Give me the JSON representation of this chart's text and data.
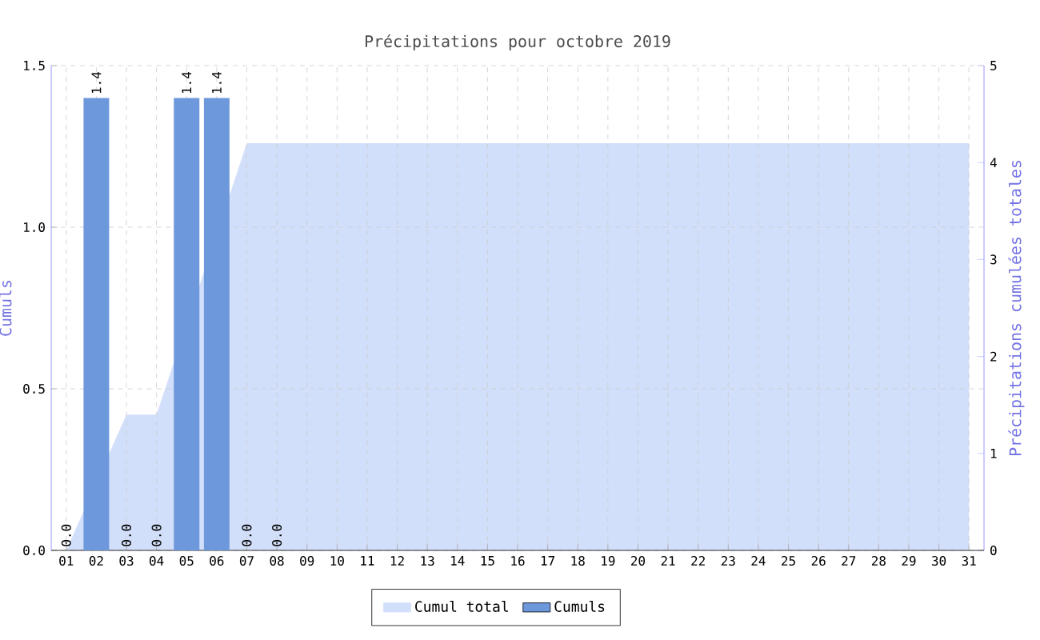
{
  "chart_data": {
    "type": "bar",
    "title": "Précipitations pour octobre 2019",
    "ylabel": "Cumuls",
    "y2label": "Précipitations cumulées totales",
    "categories": [
      "01",
      "02",
      "03",
      "04",
      "05",
      "06",
      "07",
      "08",
      "09",
      "10",
      "11",
      "12",
      "13",
      "14",
      "15",
      "16",
      "17",
      "18",
      "19",
      "20",
      "21",
      "22",
      "23",
      "24",
      "25",
      "26",
      "27",
      "28",
      "29",
      "30",
      "31"
    ],
    "ylim": [
      0,
      1.5
    ],
    "yticks": [
      {
        "value": 0,
        "label": "0.0"
      },
      {
        "value": 0.5,
        "label": "0.5"
      },
      {
        "value": 1,
        "label": "1.0"
      },
      {
        "value": 1.5,
        "label": "1.5"
      }
    ],
    "y2lim": [
      0,
      5
    ],
    "y2ticks": [
      0,
      1,
      2,
      3,
      4,
      5
    ],
    "grid": true,
    "legend": "bottom",
    "series": [
      {
        "name": "Cumul total",
        "type": "area",
        "axis": "y2",
        "color": "#d2dffa",
        "values": [
          0,
          null,
          1.4,
          1.4,
          null,
          null,
          4.2,
          4.2,
          4.2,
          4.2,
          4.2,
          4.2,
          4.2,
          4.2,
          4.2,
          4.2,
          4.2,
          4.2,
          4.2,
          4.2,
          4.2,
          4.2,
          4.2,
          4.2,
          4.2,
          4.2,
          4.2,
          4.2,
          4.2,
          4.2,
          4.2
        ]
      },
      {
        "name": "Cumuls",
        "color": "#6e98dc",
        "values": [
          0,
          1.4,
          0,
          0,
          1.4,
          1.4,
          0,
          0,
          null,
          null,
          null,
          null,
          null,
          null,
          null,
          null,
          null,
          null,
          null,
          null,
          null,
          null,
          null,
          null,
          null,
          null,
          null,
          null,
          null,
          null,
          null
        ],
        "value_labels": [
          "0.0",
          "1.4",
          "0.0",
          "0.0",
          "1.4",
          "1.4",
          "0.0",
          "0.0",
          null,
          null,
          null,
          null,
          null,
          null,
          null,
          null,
          null,
          null,
          null,
          null,
          null,
          null,
          null,
          null,
          null,
          null,
          null,
          null,
          null,
          null,
          null
        ]
      }
    ]
  }
}
